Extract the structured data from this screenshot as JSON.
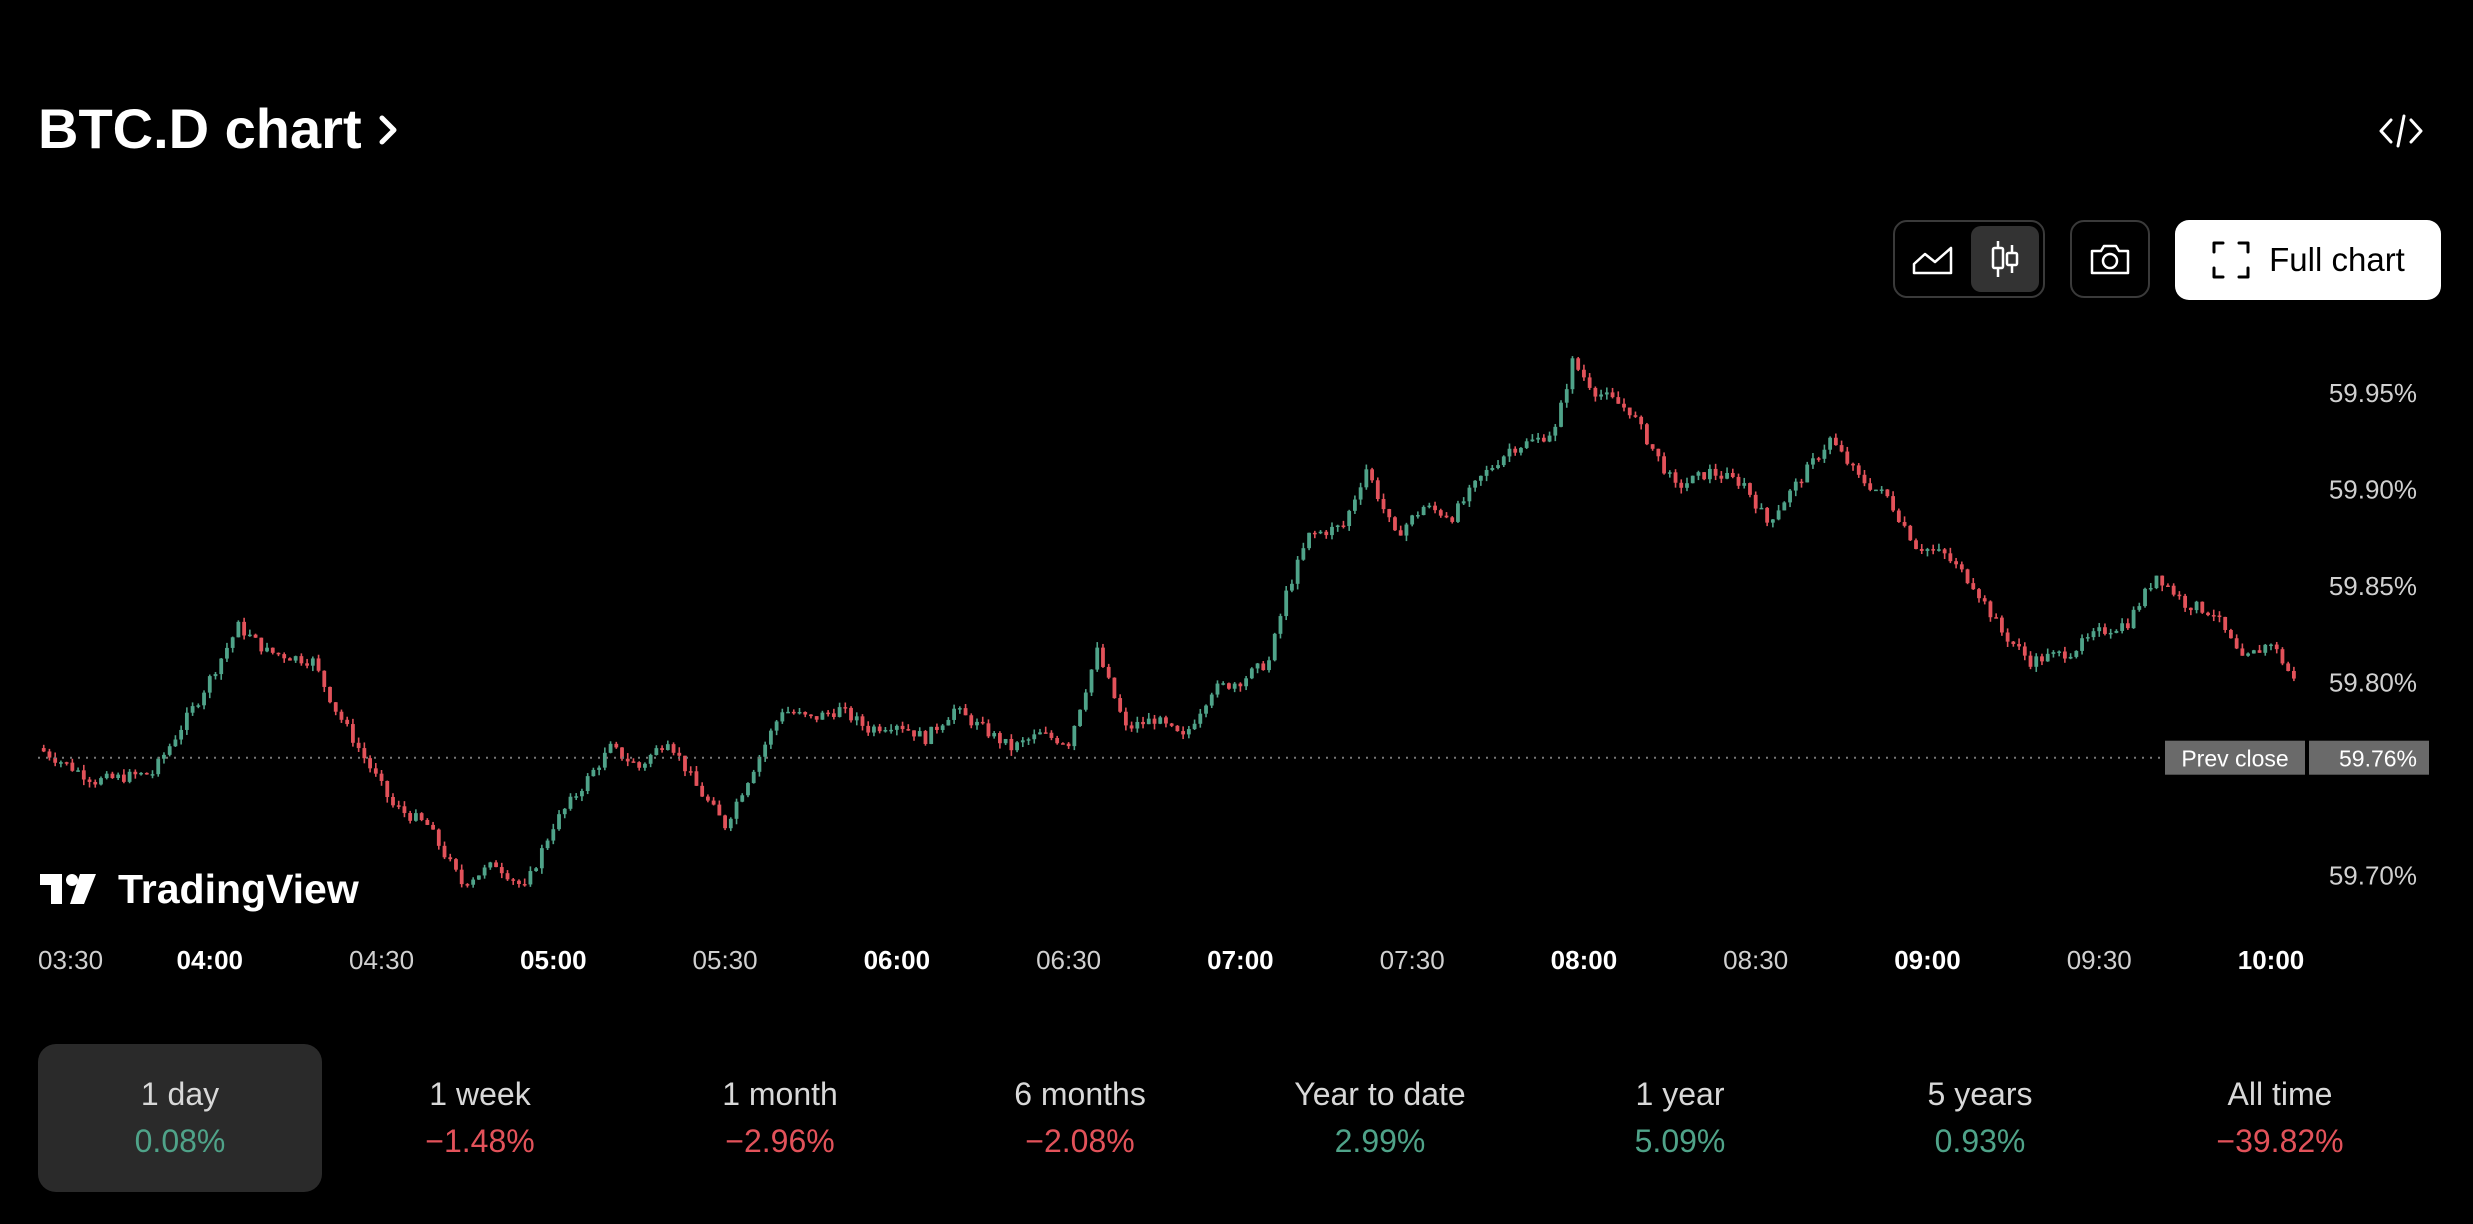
{
  "header": {
    "title": "BTC.D chart"
  },
  "toolbar": {
    "full_chart_label": "Full chart"
  },
  "icons": {
    "embed": "code-icon",
    "area": "area-chart-icon",
    "candles": "candlestick-icon",
    "camera": "camera-icon",
    "fullscreen": "fullscreen-icon",
    "logo": "tradingview-logo"
  },
  "brand": {
    "name": "TradingView"
  },
  "colors": {
    "up": "#4fa389",
    "down": "#e2525a"
  },
  "chart_data": {
    "type": "candlestick",
    "y_ticks": [
      "59.95%",
      "59.90%",
      "59.85%",
      "59.80%",
      "59.70%"
    ],
    "y_tick_values": [
      59.95,
      59.9,
      59.85,
      59.8,
      59.7
    ],
    "x_ticks": [
      "03:30",
      "04:00",
      "04:30",
      "05:00",
      "05:30",
      "06:00",
      "06:30",
      "07:00",
      "07:30",
      "08:00",
      "08:30",
      "09:00",
      "09:30",
      "10:00"
    ],
    "x_ticks_bold": [
      false,
      true,
      false,
      true,
      false,
      true,
      false,
      true,
      false,
      true,
      false,
      true,
      false,
      true
    ],
    "prev_close": {
      "label": "Prev close",
      "value_label": "59.76%",
      "value": 59.76
    },
    "ylim": [
      59.675,
      59.97
    ],
    "xlim": [
      "03:30",
      "10:06"
    ],
    "close_path": [
      [
        "03:30",
        59.765
      ],
      [
        "03:40",
        59.748
      ],
      [
        "03:50",
        59.752
      ],
      [
        "03:58",
        59.79
      ],
      [
        "04:05",
        59.828
      ],
      [
        "04:10",
        59.815
      ],
      [
        "04:18",
        59.81
      ],
      [
        "04:22",
        59.785
      ],
      [
        "04:27",
        59.76
      ],
      [
        "04:32",
        59.735
      ],
      [
        "04:38",
        59.725
      ],
      [
        "04:44",
        59.695
      ],
      [
        "04:50",
        59.705
      ],
      [
        "04:55",
        59.692
      ],
      [
        "05:00",
        59.725
      ],
      [
        "05:05",
        59.745
      ],
      [
        "05:10",
        59.765
      ],
      [
        "05:15",
        59.755
      ],
      [
        "05:20",
        59.77
      ],
      [
        "05:25",
        59.745
      ],
      [
        "05:30",
        59.725
      ],
      [
        "05:35",
        59.755
      ],
      [
        "05:40",
        59.785
      ],
      [
        "05:45",
        59.78
      ],
      [
        "05:50",
        59.785
      ],
      [
        "05:55",
        59.775
      ],
      [
        "06:00",
        59.778
      ],
      [
        "06:05",
        59.77
      ],
      [
        "06:10",
        59.785
      ],
      [
        "06:15",
        59.775
      ],
      [
        "06:20",
        59.765
      ],
      [
        "06:25",
        59.772
      ],
      [
        "06:30",
        59.768
      ],
      [
        "06:35",
        59.815
      ],
      [
        "06:40",
        59.775
      ],
      [
        "06:45",
        59.78
      ],
      [
        "06:50",
        59.77
      ],
      [
        "06:55",
        59.795
      ],
      [
        "07:00",
        59.8
      ],
      [
        "07:05",
        59.81
      ],
      [
        "07:08",
        59.845
      ],
      [
        "07:12",
        59.875
      ],
      [
        "07:18",
        59.88
      ],
      [
        "07:22",
        59.91
      ],
      [
        "07:27",
        59.875
      ],
      [
        "07:32",
        59.89
      ],
      [
        "07:37",
        59.885
      ],
      [
        "07:42",
        59.905
      ],
      [
        "07:47",
        59.92
      ],
      [
        "07:52",
        59.925
      ],
      [
        "07:55",
        59.93
      ],
      [
        "07:58",
        59.965
      ],
      [
        "08:02",
        59.95
      ],
      [
        "08:08",
        59.94
      ],
      [
        "08:12",
        59.92
      ],
      [
        "08:16",
        59.9
      ],
      [
        "08:22",
        59.908
      ],
      [
        "08:28",
        59.902
      ],
      [
        "08:32",
        59.882
      ],
      [
        "08:38",
        59.905
      ],
      [
        "08:43",
        59.925
      ],
      [
        "08:48",
        59.905
      ],
      [
        "08:53",
        59.895
      ],
      [
        "08:58",
        59.87
      ],
      [
        "09:03",
        59.865
      ],
      [
        "09:08",
        59.85
      ],
      [
        "09:13",
        59.825
      ],
      [
        "09:18",
        59.81
      ],
      [
        "09:25",
        59.815
      ],
      [
        "09:30",
        59.825
      ],
      [
        "09:35",
        59.83
      ],
      [
        "09:40",
        59.855
      ],
      [
        "09:45",
        59.84
      ],
      [
        "09:50",
        59.835
      ],
      [
        "09:55",
        59.81
      ],
      [
        "10:00",
        59.82
      ],
      [
        "10:04",
        59.8
      ]
    ]
  },
  "periods": [
    {
      "label": "1 day",
      "change": "0.08%",
      "dir": "up",
      "active": true
    },
    {
      "label": "1 week",
      "change": "−1.48%",
      "dir": "down",
      "active": false
    },
    {
      "label": "1 month",
      "change": "−2.96%",
      "dir": "down",
      "active": false
    },
    {
      "label": "6 months",
      "change": "−2.08%",
      "dir": "down",
      "active": false
    },
    {
      "label": "Year to date",
      "change": "2.99%",
      "dir": "up",
      "active": false
    },
    {
      "label": "1 year",
      "change": "5.09%",
      "dir": "up",
      "active": false
    },
    {
      "label": "5 years",
      "change": "0.93%",
      "dir": "up",
      "active": false
    },
    {
      "label": "All time",
      "change": "−39.82%",
      "dir": "down",
      "active": false
    }
  ]
}
